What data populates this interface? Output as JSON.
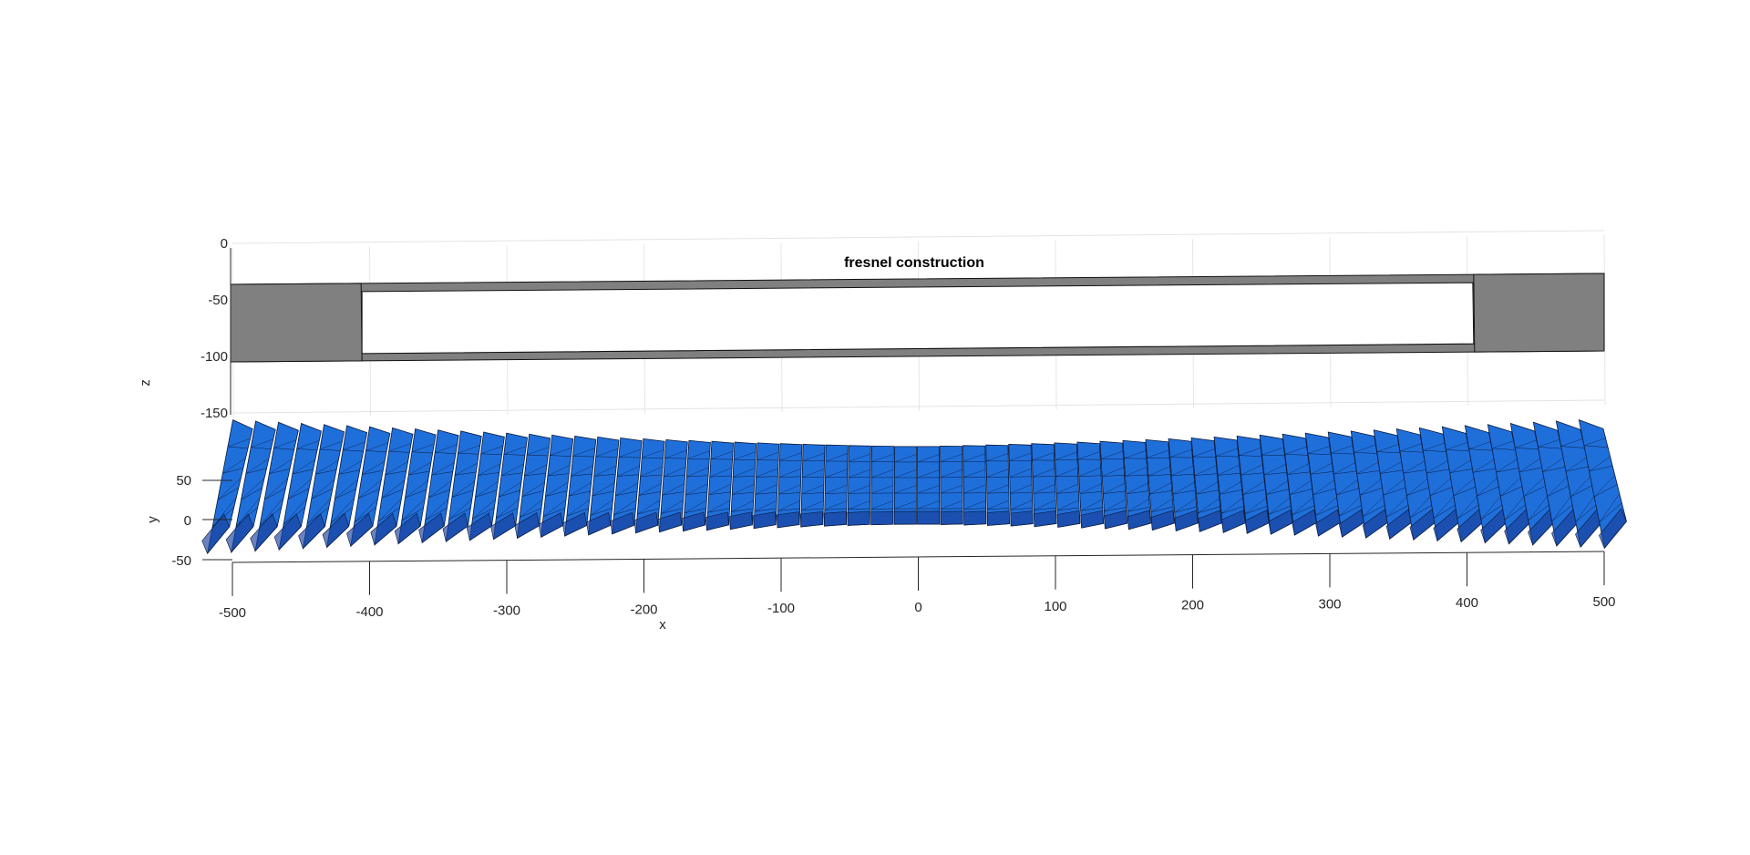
{
  "chart_data": {
    "type": "3d-surface",
    "title": "fresnel construction",
    "xlabel": "x",
    "ylabel": "y",
    "zlabel": "z",
    "xlim": [
      -500,
      500
    ],
    "ylim": [
      -50,
      50
    ],
    "zlim": [
      -150,
      0
    ],
    "x_ticks": [
      "-500",
      "-400",
      "-300",
      "-200",
      "-100",
      "0",
      "100",
      "200",
      "300",
      "400",
      "500"
    ],
    "y_ticks": [
      "50",
      "0",
      "-50"
    ],
    "z_ticks": [
      "0",
      "-50",
      "-100",
      "-150"
    ],
    "grid": true,
    "objects": [
      {
        "name": "frame",
        "kind": "box outline",
        "x_extent": [
          -500,
          500
        ],
        "z_extent": [
          -100,
          -30
        ],
        "inner_opening_x": [
          -405,
          405
        ],
        "color": "#808080"
      },
      {
        "name": "fresnel facets",
        "kind": "faceted mirror strips",
        "x_extent": [
          -500,
          500
        ],
        "strip_count": 60,
        "color": "#1f6fdb"
      }
    ]
  }
}
